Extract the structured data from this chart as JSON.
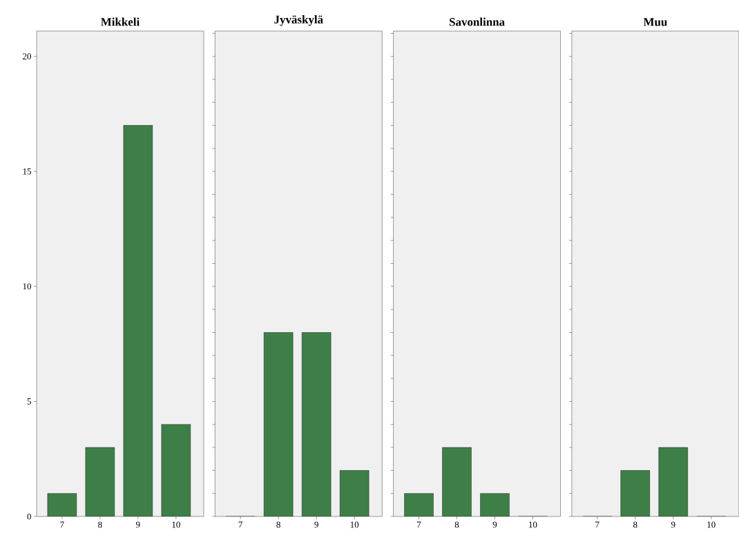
{
  "chart_data": [
    {
      "type": "bar",
      "title": "Mikkeli",
      "categories": [
        "7",
        "8",
        "9",
        "10"
      ],
      "values": [
        1,
        3,
        17,
        4
      ],
      "color": "#3e7f48",
      "ylim": [
        0,
        21.1
      ],
      "yticks": [
        0,
        5,
        10,
        15,
        20
      ]
    },
    {
      "type": "bar",
      "title": "Jyväskylä",
      "categories": [
        "7",
        "8",
        "9",
        "10"
      ],
      "values": [
        0,
        8,
        8,
        2
      ],
      "color": "#3e7f48",
      "ylim": [
        0,
        21.1
      ],
      "tick_labels": "x"
    },
    {
      "type": "bar",
      "title": "Savonlinna",
      "categories": [
        "7",
        "8",
        "9",
        "10"
      ],
      "values": [
        1,
        3,
        1,
        0
      ],
      "color": "#3e7f48",
      "ylim": [
        0,
        21.1
      ],
      "tick_labels": "x"
    },
    {
      "type": "bar",
      "title": "Muu",
      "categories": [
        "7",
        "8",
        "9",
        "10"
      ],
      "values": [
        0,
        2,
        3,
        0
      ],
      "color": "#3e7f48",
      "ylim": [
        0,
        21.1
      ],
      "tick_labels": "x"
    }
  ]
}
